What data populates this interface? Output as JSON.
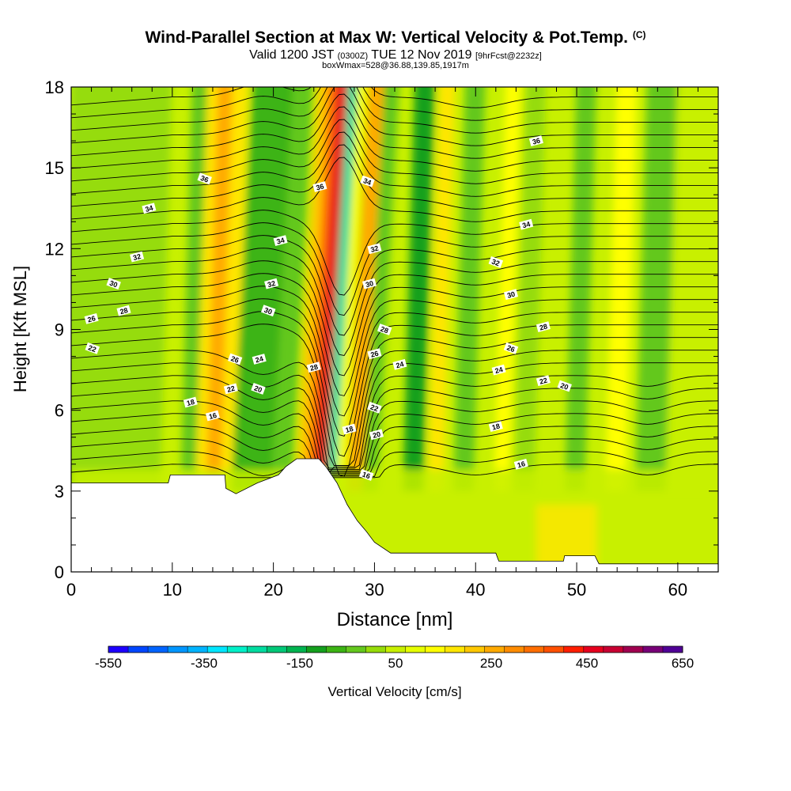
{
  "title": {
    "main": "Wind-Parallel Section at Max W: Vertical Velocity & Pot.Temp.",
    "copyright": "(C)",
    "valid_prefix": "Valid 1200 JST",
    "valid_utc": "(0300Z)",
    "valid_date": "TUE 12 Nov 2019",
    "forecast": "[9hrFcst@2232z]",
    "box_info": "boxWmax=528@36.88,139.85,1917m"
  },
  "chart_data": {
    "type": "heatmap",
    "xlabel": "Distance [nm]",
    "ylabel": "Height [Kft MSL]",
    "xlim": [
      0,
      64
    ],
    "ylim": [
      0,
      18
    ],
    "x_ticks": [
      "0",
      "10",
      "20",
      "30",
      "40",
      "50",
      "60"
    ],
    "y_ticks": [
      "0",
      "3",
      "6",
      "9",
      "12",
      "15",
      "18"
    ],
    "colorbar": {
      "label": "Vertical Velocity [cm/s]",
      "min": -550,
      "max": 650,
      "step": 50,
      "tick_labels": [
        "-550",
        "-350",
        "-150",
        "50",
        "250",
        "450",
        "650"
      ],
      "colors": [
        "#1e00ff",
        "#0046ff",
        "#0064ff",
        "#0096ff",
        "#00b4ff",
        "#00e6ff",
        "#00f0c8",
        "#00dca0",
        "#00c878",
        "#00b450",
        "#14a01e",
        "#3cb414",
        "#64c81e",
        "#96dc0a",
        "#c8f000",
        "#e6ff00",
        "#ffff00",
        "#ffe600",
        "#ffc800",
        "#ffaa00",
        "#ff8c00",
        "#ff6e00",
        "#ff5000",
        "#ff1e00",
        "#e6001e",
        "#c80032",
        "#a00050",
        "#780078",
        "#500096"
      ]
    },
    "terrain": [
      [
        0,
        3.3
      ],
      [
        9.6,
        3.3
      ],
      [
        9.8,
        3.6
      ],
      [
        15.2,
        3.6
      ],
      [
        15.3,
        3.1
      ],
      [
        16.3,
        2.9
      ],
      [
        18.4,
        3.3
      ],
      [
        20.5,
        3.6
      ],
      [
        21.2,
        3.9
      ],
      [
        22.3,
        4.2
      ],
      [
        24.5,
        4.2
      ],
      [
        25.2,
        3.9
      ],
      [
        26.3,
        3.3
      ],
      [
        27.3,
        2.5
      ],
      [
        28.3,
        1.9
      ],
      [
        29.2,
        1.5
      ],
      [
        30,
        1.1
      ],
      [
        31.6,
        0.7
      ],
      [
        37.8,
        0.7
      ],
      [
        42,
        0.7
      ],
      [
        42.3,
        0.4
      ],
      [
        48.7,
        0.4
      ],
      [
        48.8,
        0.6
      ],
      [
        51.8,
        0.6
      ],
      [
        52.2,
        0.3
      ],
      [
        64,
        0.3
      ]
    ],
    "theta_contour_labels": [
      {
        "text": "36",
        "x": 13.2,
        "y": 14.6
      },
      {
        "text": "34",
        "x": 7.7,
        "y": 13.5
      },
      {
        "text": "32",
        "x": 6.5,
        "y": 11.7
      },
      {
        "text": "30",
        "x": 4.2,
        "y": 10.7
      },
      {
        "text": "28",
        "x": 5.2,
        "y": 9.7
      },
      {
        "text": "26",
        "x": 2.0,
        "y": 9.4
      },
      {
        "text": "22",
        "x": 2.1,
        "y": 8.3
      },
      {
        "text": "18",
        "x": 11.8,
        "y": 6.3
      },
      {
        "text": "16",
        "x": 14.0,
        "y": 5.8
      },
      {
        "text": "26",
        "x": 16.2,
        "y": 7.9
      },
      {
        "text": "22",
        "x": 15.8,
        "y": 6.8
      },
      {
        "text": "24",
        "x": 18.6,
        "y": 7.9
      },
      {
        "text": "20",
        "x": 18.5,
        "y": 6.8
      },
      {
        "text": "34",
        "x": 20.7,
        "y": 12.3
      },
      {
        "text": "32",
        "x": 19.8,
        "y": 10.7
      },
      {
        "text": "30",
        "x": 19.5,
        "y": 9.7
      },
      {
        "text": "36",
        "x": 24.6,
        "y": 14.3
      },
      {
        "text": "28",
        "x": 24.0,
        "y": 7.6
      },
      {
        "text": "34",
        "x": 29.3,
        "y": 14.5
      },
      {
        "text": "32",
        "x": 30.0,
        "y": 12.0
      },
      {
        "text": "30",
        "x": 29.5,
        "y": 10.7
      },
      {
        "text": "28",
        "x": 31.0,
        "y": 9.0
      },
      {
        "text": "26",
        "x": 30.0,
        "y": 8.1
      },
      {
        "text": "24",
        "x": 32.5,
        "y": 7.7
      },
      {
        "text": "22",
        "x": 30.0,
        "y": 6.1
      },
      {
        "text": "20",
        "x": 30.2,
        "y": 5.1
      },
      {
        "text": "18",
        "x": 27.5,
        "y": 5.3
      },
      {
        "text": "16",
        "x": 29.2,
        "y": 3.6
      },
      {
        "text": "36",
        "x": 46.0,
        "y": 16.0
      },
      {
        "text": "34",
        "x": 45.0,
        "y": 12.9
      },
      {
        "text": "32",
        "x": 42.0,
        "y": 11.5
      },
      {
        "text": "30",
        "x": 43.5,
        "y": 10.3
      },
      {
        "text": "28",
        "x": 46.7,
        "y": 9.1
      },
      {
        "text": "26",
        "x": 43.5,
        "y": 8.3
      },
      {
        "text": "24",
        "x": 42.3,
        "y": 7.5
      },
      {
        "text": "22",
        "x": 46.7,
        "y": 7.1
      },
      {
        "text": "20",
        "x": 48.8,
        "y": 6.9
      },
      {
        "text": "18",
        "x": 42.0,
        "y": 5.4
      },
      {
        "text": "16",
        "x": 44.5,
        "y": 4.0
      }
    ]
  }
}
